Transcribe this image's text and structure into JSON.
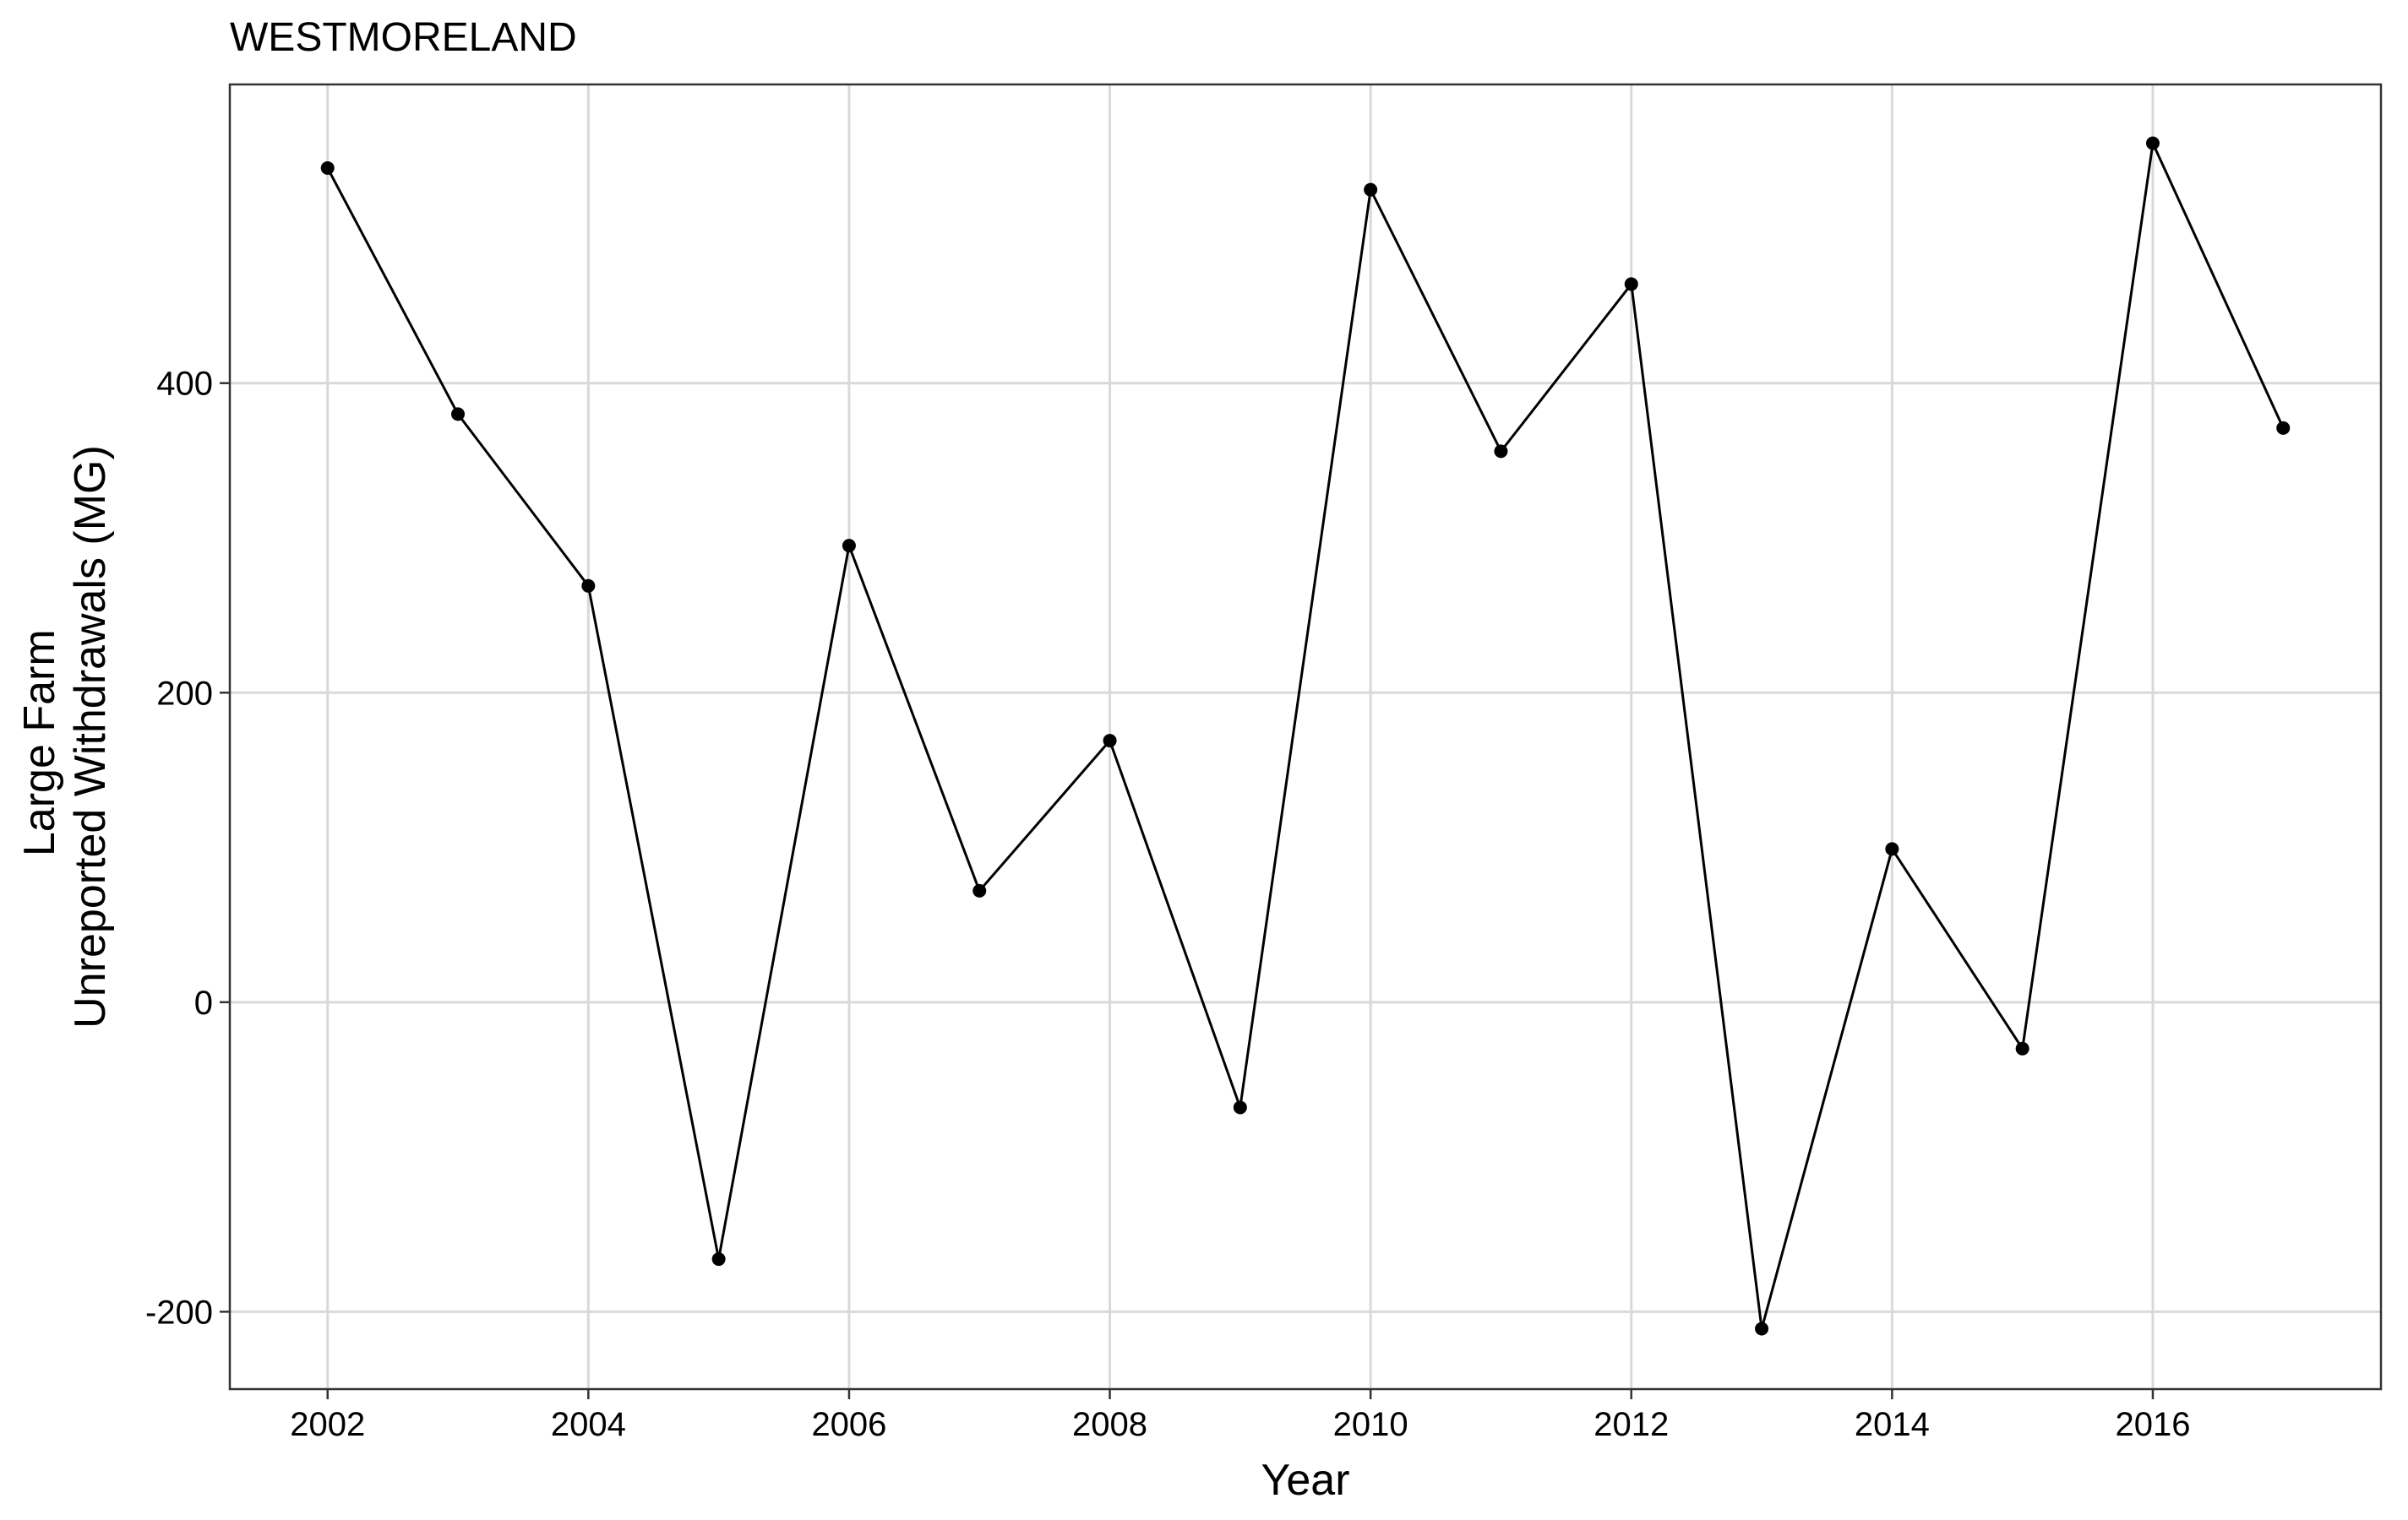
{
  "chart_data": {
    "type": "line",
    "title": "WESTMORELAND",
    "xlabel": "Year",
    "ylabel_lines": [
      "Large Farm",
      "Unreported Withdrawals (MG)"
    ],
    "x_ticks": [
      2002,
      2004,
      2006,
      2008,
      2010,
      2012,
      2014,
      2016
    ],
    "y_ticks": [
      -200,
      0,
      200,
      400
    ],
    "y_tick_labels": [
      "-200",
      "0",
      "200",
      "400"
    ],
    "xlim": [
      2001.25,
      2017.75
    ],
    "ylim": [
      -250,
      593
    ],
    "grid": true,
    "legend": "none",
    "line_color": "#000000",
    "series": [
      {
        "x": [
          2002,
          2003,
          2004,
          2005,
          2006,
          2007,
          2008,
          2009,
          2010,
          2011,
          2012,
          2013,
          2014,
          2015,
          2016,
          2017
        ],
        "values": [
          539,
          380,
          269,
          -166,
          295,
          72,
          169,
          -68,
          525,
          356,
          464,
          -211,
          99,
          -30,
          555,
          371
        ]
      }
    ]
  }
}
